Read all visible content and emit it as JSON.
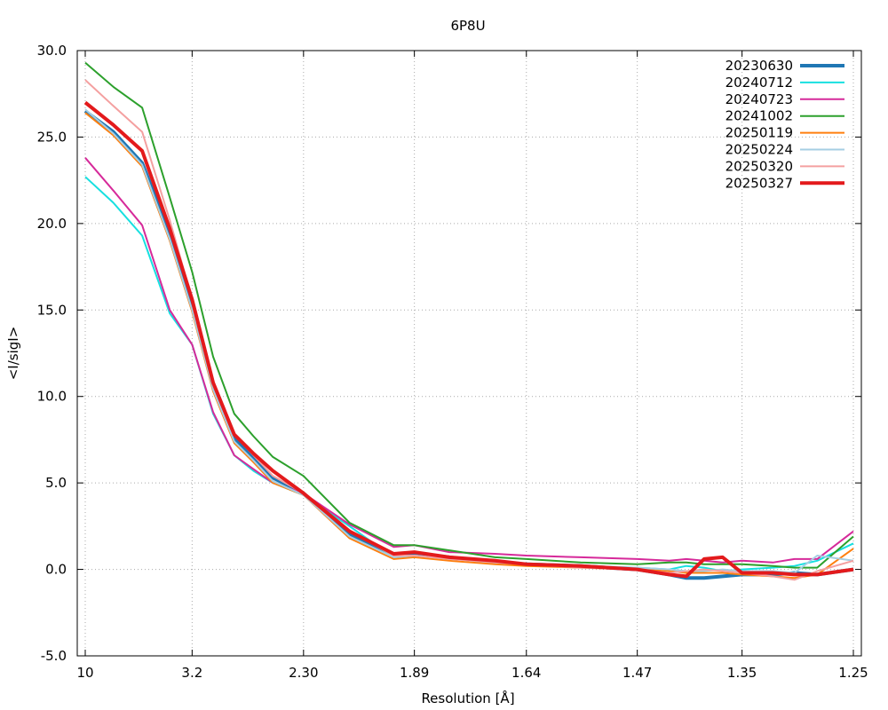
{
  "chart_data": {
    "type": "line",
    "title": "6P8U",
    "xlabel": "Resolution [Å]",
    "ylabel": "<I/sigI>",
    "x_axis_note": "reciprocal-squared resolution scale (1/d^2)",
    "xlim": [
      10,
      1.25
    ],
    "ylim": [
      -5,
      30
    ],
    "xticks": [
      {
        "value": 10,
        "label": "10"
      },
      {
        "value": 3.2,
        "label": "3.2"
      },
      {
        "value": 2.3,
        "label": "2.30"
      },
      {
        "value": 1.89,
        "label": "1.89"
      },
      {
        "value": 1.64,
        "label": "1.64"
      },
      {
        "value": 1.47,
        "label": "1.47"
      },
      {
        "value": 1.35,
        "label": "1.35"
      },
      {
        "value": 1.25,
        "label": "1.25"
      }
    ],
    "yticks": [
      {
        "value": -5,
        "label": "-5.0"
      },
      {
        "value": 0,
        "label": "0.0"
      },
      {
        "value": 5,
        "label": "5.0"
      },
      {
        "value": 10,
        "label": "10.0"
      },
      {
        "value": 15,
        "label": "15.0"
      },
      {
        "value": 20,
        "label": "20.0"
      },
      {
        "value": 25,
        "label": "25.0"
      },
      {
        "value": 30,
        "label": "30.0"
      }
    ],
    "grid": true,
    "legend_position": "top-right",
    "x": [
      10,
      5.5,
      4.2,
      3.55,
      3.2,
      2.95,
      2.75,
      2.6,
      2.47,
      2.3,
      2.1,
      1.95,
      1.89,
      1.8,
      1.7,
      1.64,
      1.55,
      1.47,
      1.43,
      1.41,
      1.39,
      1.37,
      1.35,
      1.32,
      1.3,
      1.28,
      1.25
    ],
    "series": [
      {
        "name": "20230630",
        "color": "#1f77b4",
        "width": 4,
        "values": [
          26.5,
          25.3,
          23.5,
          19.4,
          15.3,
          10.6,
          7.6,
          6.5,
          5.3,
          4.4,
          2.0,
          0.8,
          0.9,
          0.7,
          0.4,
          0.3,
          0.2,
          0.0,
          -0.3,
          -0.5,
          -0.5,
          -0.4,
          -0.3,
          -0.3,
          -0.2,
          -0.3,
          0.0
        ]
      },
      {
        "name": "20240712",
        "color": "#17e0e0",
        "width": 2,
        "values": [
          22.7,
          21.2,
          19.3,
          14.8,
          13.0,
          9.0,
          6.6,
          5.7,
          5.0,
          4.3,
          2.5,
          0.7,
          0.8,
          0.6,
          0.5,
          0.3,
          0.2,
          0.1,
          0.0,
          0.2,
          0.1,
          -0.1,
          0.0,
          0.1,
          0.2,
          0.5,
          1.5
        ]
      },
      {
        "name": "20240723",
        "color": "#d62a9a",
        "width": 2,
        "values": [
          23.8,
          21.9,
          19.9,
          15.0,
          13.0,
          9.1,
          6.6,
          5.8,
          5.0,
          4.4,
          2.6,
          1.3,
          1.4,
          1.0,
          0.9,
          0.8,
          0.7,
          0.6,
          0.5,
          0.6,
          0.5,
          0.4,
          0.5,
          0.4,
          0.6,
          0.6,
          2.2
        ]
      },
      {
        "name": "20241002",
        "color": "#2ca02c",
        "width": 2,
        "values": [
          29.3,
          27.9,
          26.7,
          21.5,
          17.2,
          12.3,
          9.0,
          7.7,
          6.5,
          5.4,
          2.7,
          1.4,
          1.4,
          1.1,
          0.7,
          0.6,
          0.4,
          0.3,
          0.4,
          0.4,
          0.3,
          0.3,
          0.3,
          0.2,
          0.1,
          0.1,
          1.9
        ]
      },
      {
        "name": "20250119",
        "color": "#ff7f0e",
        "width": 2,
        "values": [
          26.4,
          25.1,
          23.3,
          19.0,
          14.9,
          10.3,
          7.3,
          6.2,
          5.0,
          4.3,
          1.8,
          0.6,
          0.7,
          0.5,
          0.3,
          0.2,
          0.1,
          0.0,
          -0.1,
          -0.2,
          -0.2,
          -0.2,
          -0.3,
          -0.4,
          -0.5,
          -0.3,
          1.2
        ]
      },
      {
        "name": "20250224",
        "color": "#a6cee3",
        "width": 2,
        "values": [
          26.6,
          25.2,
          23.4,
          19.1,
          15.0,
          10.4,
          7.4,
          6.3,
          5.1,
          4.3,
          1.9,
          0.7,
          0.8,
          0.6,
          0.4,
          0.3,
          0.2,
          0.1,
          0.0,
          -0.1,
          -0.1,
          0.0,
          -0.1,
          -0.1,
          -0.2,
          0.8,
          0.5
        ]
      },
      {
        "name": "20250320",
        "color": "#f4a0a0",
        "width": 2,
        "values": [
          28.3,
          26.8,
          25.3,
          20.2,
          15.6,
          10.8,
          7.8,
          6.6,
          5.4,
          4.4,
          2.2,
          0.8,
          0.8,
          0.6,
          0.4,
          0.3,
          0.1,
          0.0,
          -0.2,
          -0.1,
          0.0,
          -0.1,
          -0.2,
          -0.4,
          -0.6,
          -0.1,
          0.5
        ]
      },
      {
        "name": "20250327",
        "color": "#e31a1c",
        "width": 4,
        "values": [
          27.0,
          25.7,
          24.2,
          19.7,
          15.6,
          10.8,
          7.8,
          6.7,
          5.7,
          4.4,
          2.2,
          0.9,
          1.0,
          0.7,
          0.5,
          0.3,
          0.2,
          0.0,
          -0.3,
          -0.4,
          0.6,
          0.7,
          -0.2,
          -0.2,
          -0.3,
          -0.3,
          0.0
        ]
      }
    ]
  }
}
